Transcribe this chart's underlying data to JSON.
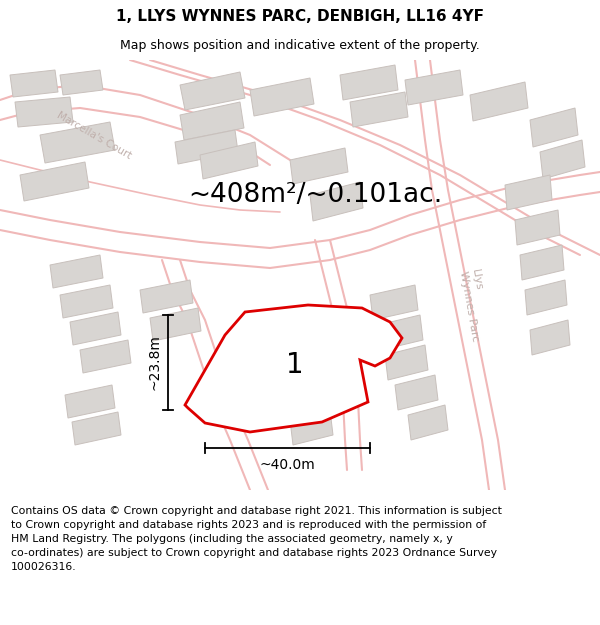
{
  "title": "1, LLYS WYNNES PARC, DENBIGH, LL16 4YF",
  "subtitle": "Map shows position and indicative extent of the property.",
  "area_text": "~408m²/~0.101ac.",
  "dim_width": "~40.0m",
  "dim_height": "~23.8m",
  "plot_label": "1",
  "footer_text": "Contains OS data © Crown copyright and database right 2021. This information is subject to Crown copyright and database rights 2023 and is reproduced with the permission of HM Land Registry. The polygons (including the associated geometry, namely x, y co-ordinates) are subject to Crown copyright and database rights 2023 Ordnance Survey 100026316.",
  "map_bg": "#f7f5f5",
  "plot_fill": "#ffffff",
  "plot_edge_color": "#dd0000",
  "road_color": "#f0b8b8",
  "building_fill": "#d8d5d2",
  "building_edge": "#c8c0bc",
  "label_color": "#c0b0ac",
  "title_fontsize": 11,
  "subtitle_fontsize": 9,
  "area_fontsize": 19,
  "footer_fontsize": 7.8,
  "dim_fontsize": 10
}
